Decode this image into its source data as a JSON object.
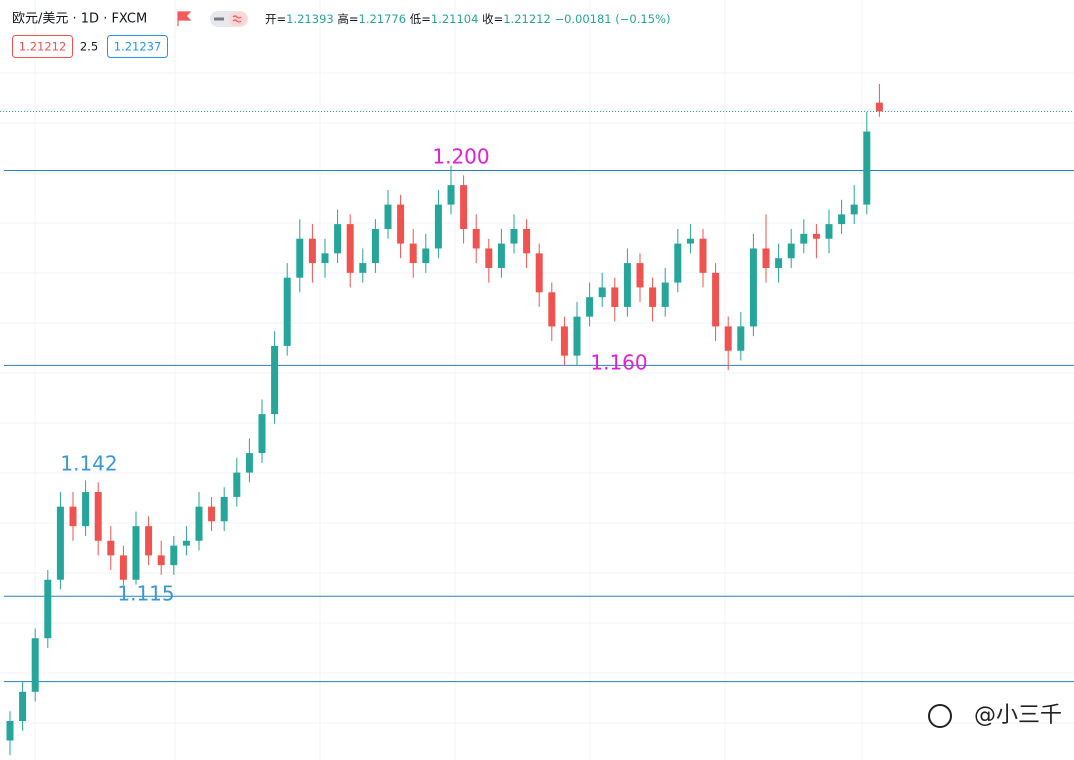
{
  "chart_data": {
    "type": "candlestick",
    "title": "欧元/美元 · 1D · FXCM",
    "ohlc_labels": [
      "开=",
      "高=",
      "低=",
      "收="
    ],
    "change_label": "−0.00181 (−0.15%)",
    "spread": 2.5,
    "ask": 1.21237,
    "up_color": "#26a69a",
    "down_color": "#ef5350",
    "ylim": [
      1.079,
      1.235
    ],
    "hlines": [
      1.2,
      1.16,
      1.1126,
      1.0951
    ],
    "annotations": [
      {
        "text": "1.200",
        "color": "#e11fd6"
      },
      {
        "text": "1.160",
        "color": "#e11fd6"
      },
      {
        "text": "1.142",
        "color": "#3a98d8"
      },
      {
        "text": "1.115",
        "color": "#3a98d8"
      }
    ],
    "watermark": "@小三千",
    "ohlc": [
      [
        1.083,
        1.089,
        1.08,
        1.087
      ],
      [
        1.087,
        1.095,
        1.085,
        1.093
      ],
      [
        1.093,
        1.106,
        1.091,
        1.104
      ],
      [
        1.104,
        1.118,
        1.102,
        1.116
      ],
      [
        1.116,
        1.134,
        1.114,
        1.131
      ],
      [
        1.131,
        1.134,
        1.124,
        1.127
      ],
      [
        1.127,
        1.1364,
        1.125,
        1.134
      ],
      [
        1.134,
        1.136,
        1.121,
        1.124
      ],
      [
        1.124,
        1.127,
        1.118,
        1.121
      ],
      [
        1.121,
        1.123,
        1.1149,
        1.116
      ],
      [
        1.116,
        1.13,
        1.115,
        1.127
      ],
      [
        1.127,
        1.129,
        1.119,
        1.121
      ],
      [
        1.121,
        1.124,
        1.117,
        1.119
      ],
      [
        1.119,
        1.125,
        1.117,
        1.123
      ],
      [
        1.123,
        1.127,
        1.121,
        1.124
      ],
      [
        1.124,
        1.134,
        1.122,
        1.131
      ],
      [
        1.131,
        1.133,
        1.126,
        1.128
      ],
      [
        1.128,
        1.135,
        1.126,
        1.133
      ],
      [
        1.133,
        1.141,
        1.131,
        1.138
      ],
      [
        1.138,
        1.145,
        1.136,
        1.142
      ],
      [
        1.142,
        1.153,
        1.14,
        1.15
      ],
      [
        1.15,
        1.167,
        1.148,
        1.164
      ],
      [
        1.164,
        1.181,
        1.162,
        1.178
      ],
      [
        1.178,
        1.19,
        1.175,
        1.186
      ],
      [
        1.186,
        1.189,
        1.177,
        1.181
      ],
      [
        1.181,
        1.186,
        1.178,
        1.183
      ],
      [
        1.183,
        1.192,
        1.181,
        1.189
      ],
      [
        1.189,
        1.191,
        1.176,
        1.179
      ],
      [
        1.179,
        1.184,
        1.177,
        1.181
      ],
      [
        1.181,
        1.19,
        1.179,
        1.188
      ],
      [
        1.188,
        1.196,
        1.186,
        1.193
      ],
      [
        1.193,
        1.195,
        1.182,
        1.185
      ],
      [
        1.185,
        1.188,
        1.178,
        1.181
      ],
      [
        1.181,
        1.187,
        1.179,
        1.184
      ],
      [
        1.184,
        1.196,
        1.182,
        1.193
      ],
      [
        1.193,
        1.201,
        1.191,
        1.197
      ],
      [
        1.197,
        1.199,
        1.185,
        1.188
      ],
      [
        1.188,
        1.191,
        1.181,
        1.184
      ],
      [
        1.184,
        1.186,
        1.177,
        1.18
      ],
      [
        1.18,
        1.188,
        1.178,
        1.185
      ],
      [
        1.185,
        1.191,
        1.183,
        1.188
      ],
      [
        1.188,
        1.19,
        1.18,
        1.183
      ],
      [
        1.183,
        1.185,
        1.172,
        1.175
      ],
      [
        1.175,
        1.177,
        1.165,
        1.168
      ],
      [
        1.168,
        1.17,
        1.16,
        1.162
      ],
      [
        1.162,
        1.173,
        1.16,
        1.17
      ],
      [
        1.17,
        1.177,
        1.168,
        1.174
      ],
      [
        1.174,
        1.179,
        1.172,
        1.176
      ],
      [
        1.176,
        1.178,
        1.169,
        1.172
      ],
      [
        1.172,
        1.184,
        1.17,
        1.181
      ],
      [
        1.181,
        1.183,
        1.173,
        1.176
      ],
      [
        1.176,
        1.178,
        1.169,
        1.172
      ],
      [
        1.172,
        1.18,
        1.17,
        1.177
      ],
      [
        1.177,
        1.188,
        1.175,
        1.185
      ],
      [
        1.185,
        1.189,
        1.183,
        1.186
      ],
      [
        1.186,
        1.188,
        1.176,
        1.179
      ],
      [
        1.179,
        1.181,
        1.165,
        1.168
      ],
      [
        1.168,
        1.17,
        1.159,
        1.163
      ],
      [
        1.163,
        1.171,
        1.161,
        1.168
      ],
      [
        1.168,
        1.187,
        1.166,
        1.184
      ],
      [
        1.184,
        1.191,
        1.177,
        1.18
      ],
      [
        1.18,
        1.185,
        1.177,
        1.182
      ],
      [
        1.182,
        1.188,
        1.18,
        1.185
      ],
      [
        1.185,
        1.19,
        1.183,
        1.187
      ],
      [
        1.187,
        1.189,
        1.182,
        1.186
      ],
      [
        1.186,
        1.192,
        1.183,
        1.189
      ],
      [
        1.189,
        1.194,
        1.187,
        1.191
      ],
      [
        1.191,
        1.197,
        1.189,
        1.193
      ],
      [
        1.193,
        1.212,
        1.191,
        1.208
      ],
      [
        1.21393,
        1.21776,
        1.21104,
        1.21212
      ]
    ]
  }
}
